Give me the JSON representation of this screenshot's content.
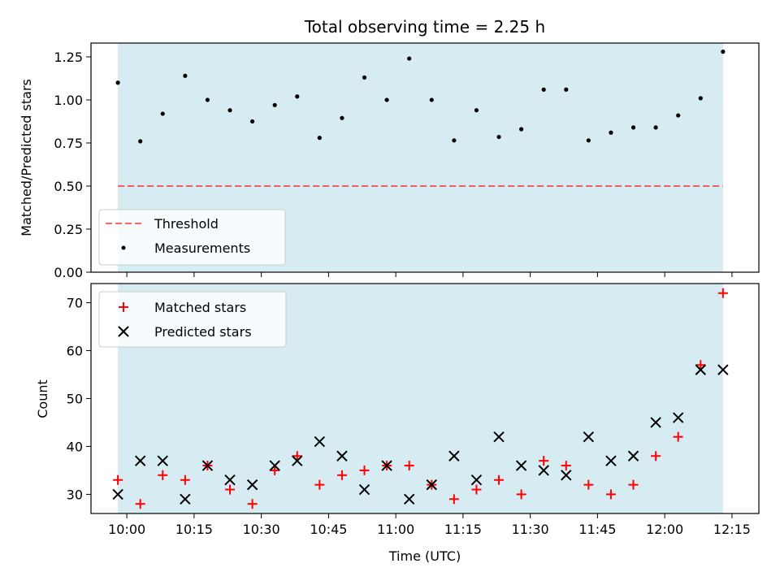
{
  "title": "Total observing time = 2.25 h",
  "colors": {
    "observing_window": "#add8e6",
    "threshold": "#ff0000",
    "measurements": "#000000",
    "matched": "#ff0000",
    "predicted": "#000000"
  },
  "chart_data": [
    {
      "type": "scatter",
      "panel": "top",
      "ylabel": "Matched/Predicted stars",
      "ylim": [
        0,
        1.33
      ],
      "yticks": [
        0,
        0.25,
        0.5,
        0.75,
        1.0,
        1.25
      ],
      "ytick_labels": [
        "0.00",
        "0.25",
        "0.50",
        "0.75",
        "1.00",
        "1.25"
      ],
      "observing_window": [
        "09:58",
        "12:13"
      ],
      "threshold": {
        "name": "Threshold",
        "value": 0.5
      },
      "series": [
        {
          "name": "Measurements",
          "x": [
            "09:58",
            "10:03",
            "10:08",
            "10:13",
            "10:18",
            "10:23",
            "10:28",
            "10:33",
            "10:38",
            "10:43",
            "10:48",
            "10:53",
            "10:58",
            "11:03",
            "11:08",
            "11:13",
            "11:18",
            "11:23",
            "11:28",
            "11:33",
            "11:38",
            "11:43",
            "11:48",
            "11:53",
            "11:58",
            "12:03",
            "12:08",
            "12:13"
          ],
          "values": [
            1.1,
            0.76,
            0.92,
            1.14,
            1.0,
            0.94,
            0.875,
            0.97,
            1.02,
            0.78,
            0.895,
            1.13,
            1.0,
            1.24,
            1.0,
            0.765,
            0.94,
            0.785,
            0.83,
            1.06,
            1.06,
            0.765,
            0.81,
            0.84,
            0.84,
            0.91,
            1.01,
            1.28
          ]
        }
      ],
      "legend": "lower-left"
    },
    {
      "type": "scatter",
      "panel": "bottom",
      "xlabel": "Time (UTC)",
      "ylabel": "Count",
      "ylim": [
        26,
        74
      ],
      "yticks": [
        30,
        40,
        50,
        60,
        70
      ],
      "ytick_labels": [
        "30",
        "40",
        "50",
        "60",
        "70"
      ],
      "xlim": [
        "09:52",
        "12:21"
      ],
      "xticks": [
        "10:00",
        "10:15",
        "10:30",
        "10:45",
        "11:00",
        "11:15",
        "11:30",
        "11:45",
        "12:00",
        "12:15"
      ],
      "observing_window": [
        "09:58",
        "12:13"
      ],
      "series": [
        {
          "name": "Matched stars",
          "x": [
            "09:58",
            "10:03",
            "10:08",
            "10:13",
            "10:18",
            "10:23",
            "10:28",
            "10:33",
            "10:38",
            "10:43",
            "10:48",
            "10:53",
            "10:58",
            "11:03",
            "11:08",
            "11:13",
            "11:18",
            "11:23",
            "11:28",
            "11:33",
            "11:38",
            "11:43",
            "11:48",
            "11:53",
            "11:58",
            "12:03",
            "12:08",
            "12:13"
          ],
          "values": [
            33,
            28,
            34,
            33,
            36,
            31,
            28,
            35,
            38,
            32,
            34,
            35,
            36,
            36,
            32,
            29,
            31,
            33,
            30,
            37,
            36,
            32,
            30,
            32,
            38,
            42,
            57,
            72
          ]
        },
        {
          "name": "Predicted stars",
          "x": [
            "09:58",
            "10:03",
            "10:08",
            "10:13",
            "10:18",
            "10:23",
            "10:28",
            "10:33",
            "10:38",
            "10:43",
            "10:48",
            "10:53",
            "10:58",
            "11:03",
            "11:08",
            "11:13",
            "11:18",
            "11:23",
            "11:28",
            "11:33",
            "11:38",
            "11:43",
            "11:48",
            "11:53",
            "11:58",
            "12:03",
            "12:08",
            "12:13"
          ],
          "values": [
            30,
            37,
            37,
            29,
            36,
            33,
            32,
            36,
            37,
            41,
            38,
            31,
            36,
            29,
            32,
            38,
            33,
            42,
            36,
            35,
            34,
            42,
            37,
            38,
            45,
            46,
            56,
            56
          ]
        }
      ],
      "legend": "upper-left"
    }
  ]
}
